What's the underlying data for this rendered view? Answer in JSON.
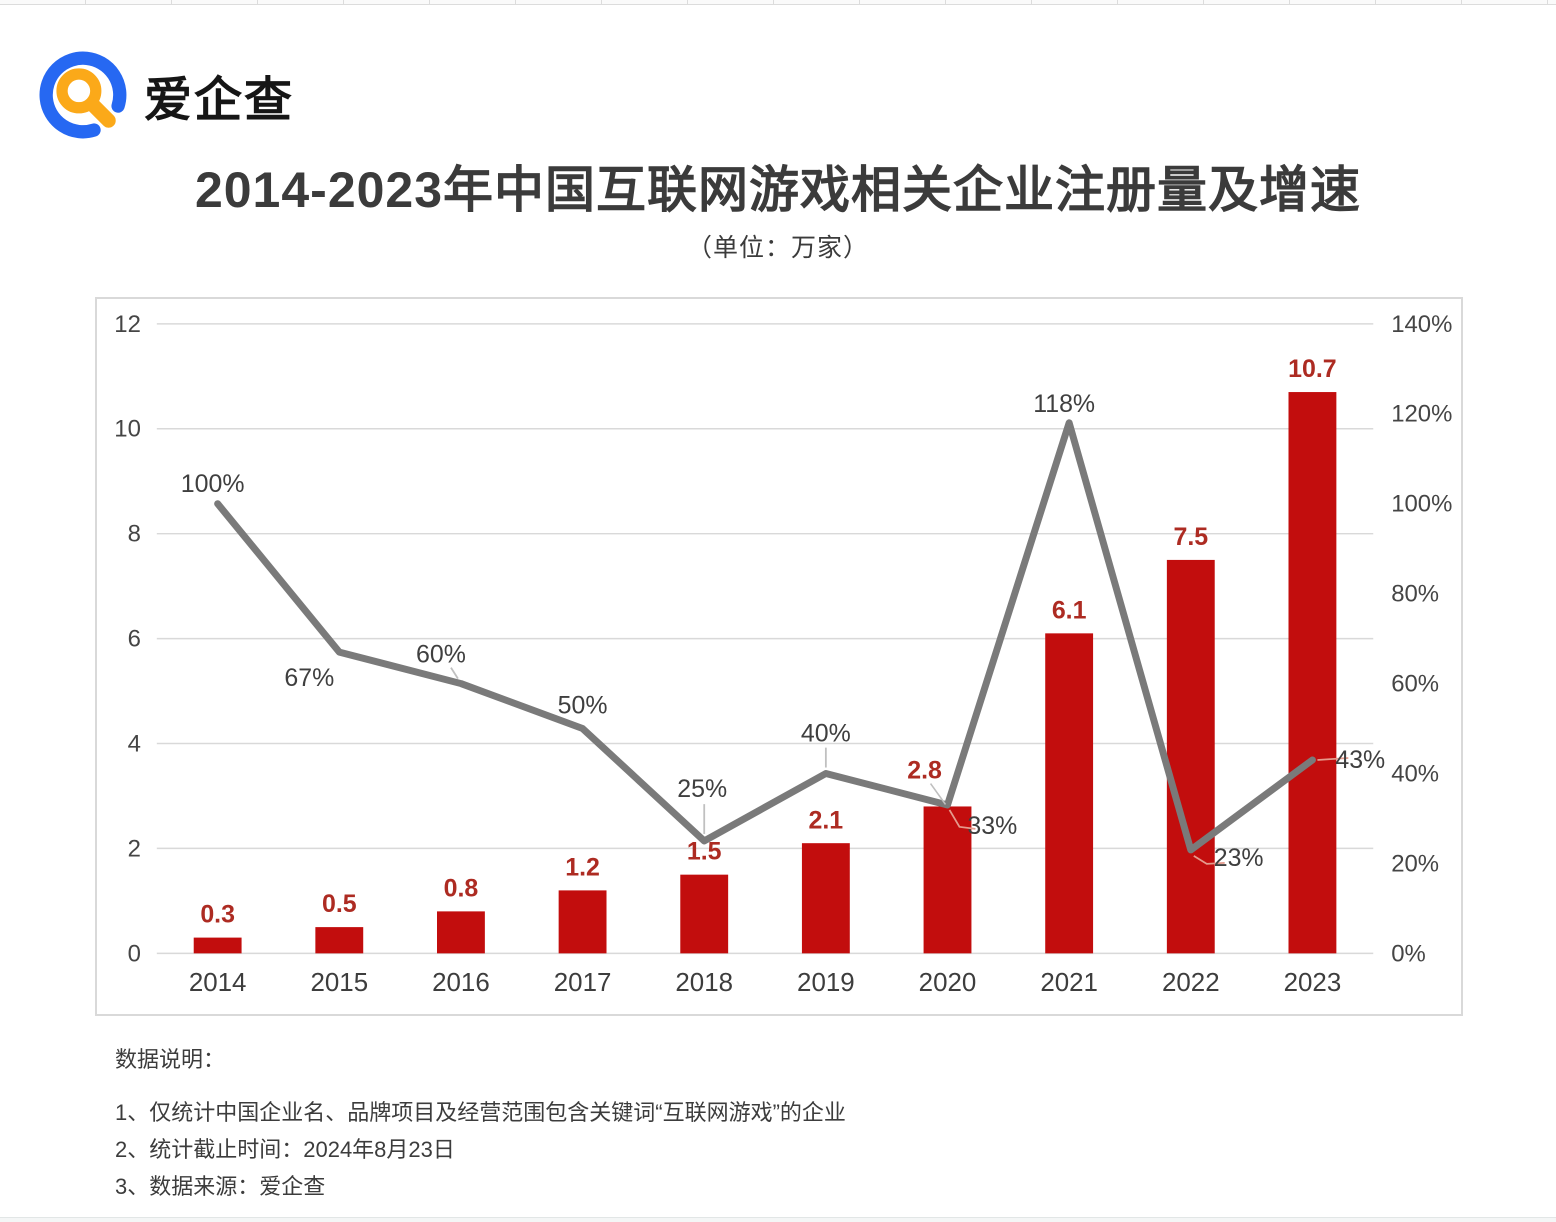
{
  "logo": {
    "text": "爱企查"
  },
  "title": "2014-2023年中国互联网游戏相关企业注册量及增速",
  "subtitle": "（单位：万家）",
  "chart_data": {
    "type": "combo",
    "title": "2014-2023年中国互联网游戏相关企业注册量及增速",
    "unit_note": "（单位：万家）",
    "categories": [
      "2014",
      "2015",
      "2016",
      "2017",
      "2018",
      "2019",
      "2020",
      "2021",
      "2022",
      "2023"
    ],
    "series": [
      {
        "name": "注册量（万家）",
        "type": "bar",
        "axis": "left",
        "color": "#c20d0d",
        "label_color": "#ad2b22",
        "values": [
          0.3,
          0.5,
          0.8,
          1.2,
          1.5,
          2.1,
          2.8,
          6.1,
          7.5,
          10.7
        ],
        "labels": [
          "0.3",
          "0.5",
          "0.8",
          "1.2",
          "1.5",
          "2.1",
          "2.8",
          "6.1",
          "7.5",
          "10.7"
        ]
      },
      {
        "name": "增速",
        "type": "line",
        "axis": "right",
        "color": "#7a7a7a",
        "label_color": "#3f3f3f",
        "values": [
          100,
          67,
          60,
          50,
          25,
          40,
          33,
          118,
          23,
          43
        ],
        "labels": [
          "100%",
          "67%",
          "60%",
          "50%",
          "25%",
          "40%",
          "33%",
          "118%",
          "23%",
          "43%"
        ]
      }
    ],
    "left_axis": {
      "min": 0,
      "max": 12,
      "step": 2,
      "ticks": [
        "0",
        "2",
        "4",
        "6",
        "8",
        "10",
        "12"
      ]
    },
    "right_axis": {
      "min": 0,
      "max": 140,
      "step": 20,
      "ticks": [
        "0%",
        "20%",
        "40%",
        "60%",
        "80%",
        "100%",
        "120%",
        "140%"
      ]
    },
    "grid": true,
    "grid_color": "#d9d9d9",
    "axis_text_color": "#454545",
    "legend": "none"
  },
  "notes": {
    "heading": "数据说明：",
    "items": [
      "1、仅统计中国企业名、品牌项目及经营范围包含关键词“互联网游戏”的企业",
      "2、统计截止时间：2024年8月23日",
      "3、数据来源：爱企查"
    ]
  }
}
